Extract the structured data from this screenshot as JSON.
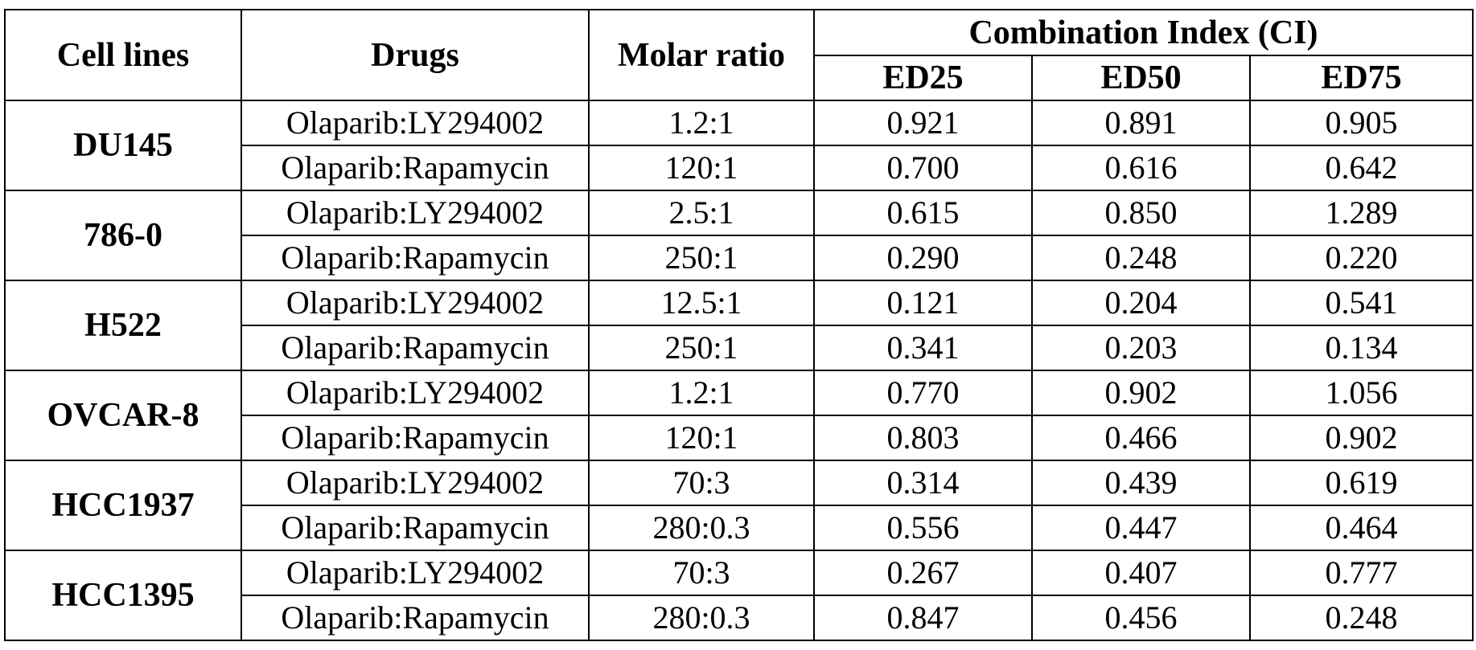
{
  "table": {
    "headers": {
      "cell_lines": "Cell lines",
      "drugs": "Drugs",
      "molar_ratio": "Molar ratio",
      "combination_index": "Combination Index (CI)",
      "ed25": "ED25",
      "ed50": "ED50",
      "ed75": "ED75"
    },
    "groups": [
      {
        "cell_line": "DU145",
        "rows": [
          {
            "drug": "Olaparib:LY294002",
            "ratio": "1.2:1",
            "ed25": "0.921",
            "ed50": "0.891",
            "ed75": "0.905"
          },
          {
            "drug": "Olaparib:Rapamycin",
            "ratio": "120:1",
            "ed25": "0.700",
            "ed50": "0.616",
            "ed75": "0.642"
          }
        ]
      },
      {
        "cell_line": "786-0",
        "rows": [
          {
            "drug": "Olaparib:LY294002",
            "ratio": "2.5:1",
            "ed25": "0.615",
            "ed50": "0.850",
            "ed75": "1.289"
          },
          {
            "drug": "Olaparib:Rapamycin",
            "ratio": "250:1",
            "ed25": "0.290",
            "ed50": "0.248",
            "ed75": "0.220"
          }
        ]
      },
      {
        "cell_line": "H522",
        "rows": [
          {
            "drug": "Olaparib:LY294002",
            "ratio": "12.5:1",
            "ed25": "0.121",
            "ed50": "0.204",
            "ed75": "0.541"
          },
          {
            "drug": "Olaparib:Rapamycin",
            "ratio": "250:1",
            "ed25": "0.341",
            "ed50": "0.203",
            "ed75": "0.134"
          }
        ]
      },
      {
        "cell_line": "OVCAR-8",
        "rows": [
          {
            "drug": "Olaparib:LY294002",
            "ratio": "1.2:1",
            "ed25": "0.770",
            "ed50": "0.902",
            "ed75": "1.056"
          },
          {
            "drug": "Olaparib:Rapamycin",
            "ratio": "120:1",
            "ed25": "0.803",
            "ed50": "0.466",
            "ed75": "0.902"
          }
        ]
      },
      {
        "cell_line": "HCC1937",
        "rows": [
          {
            "drug": "Olaparib:LY294002",
            "ratio": "70:3",
            "ed25": "0.314",
            "ed50": "0.439",
            "ed75": "0.619"
          },
          {
            "drug": "Olaparib:Rapamycin",
            "ratio": "280:0.3",
            "ed25": "0.556",
            "ed50": "0.447",
            "ed75": "0.464"
          }
        ]
      },
      {
        "cell_line": "HCC1395",
        "rows": [
          {
            "drug": "Olaparib:LY294002",
            "ratio": "70:3",
            "ed25": "0.267",
            "ed50": "0.407",
            "ed75": "0.777"
          },
          {
            "drug": "Olaparib:Rapamycin",
            "ratio": "280:0.3",
            "ed25": "0.847",
            "ed50": "0.456",
            "ed75": "0.248"
          }
        ]
      }
    ]
  }
}
